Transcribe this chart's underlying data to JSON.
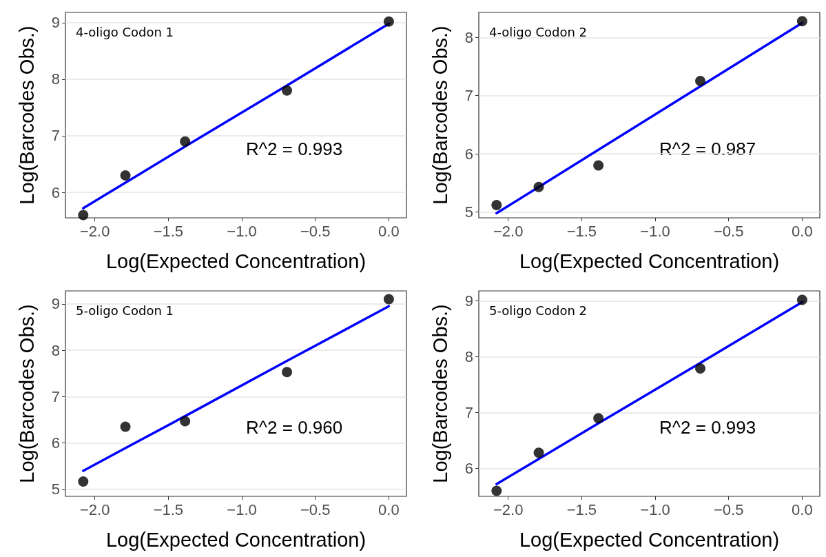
{
  "chart_data": [
    {
      "type": "scatter",
      "title": "4-oligo Codon 1",
      "xlabel": "Log(Expected Concentration)",
      "ylabel": "Log(Barcodes Obs.)",
      "annotations": [
        "R^2 = 0.993"
      ],
      "x": [
        -2.079,
        -1.792,
        -1.386,
        -0.693,
        0
      ],
      "series": [
        {
          "color": "#000000",
          "marker": "circle",
          "values": [
            5.6,
            6.3,
            6.9,
            7.8,
            9.02
          ]
        },
        {
          "type": "line",
          "color": "#0000ff",
          "marker": "none",
          "values": [
            5.72,
            6.17,
            6.81,
            7.89,
            8.98
          ]
        }
      ],
      "xlim": [
        -2.2,
        0.12
      ],
      "ylim": [
        5.55,
        9.18
      ],
      "xticks": [
        {
          "value": -2,
          "label": "−2.0"
        },
        {
          "value": -1.5,
          "label": "−1.5"
        },
        {
          "value": -1,
          "label": "−1.0"
        },
        {
          "value": -0.5,
          "label": "−0.5"
        },
        {
          "value": 0,
          "label": "0.0"
        }
      ],
      "yticks": [
        6,
        7,
        8,
        9
      ],
      "grid": "y",
      "line_style": "solid"
    },
    {
      "type": "scatter",
      "title": "4-oligo Codon 2",
      "xlabel": "Log(Expected Concentration)",
      "ylabel": "Log(Barcodes Obs.)",
      "annotations": [
        "R^2 = 0.987"
      ],
      "x": [
        -2.079,
        -1.792,
        -1.386,
        -0.693,
        0
      ],
      "series": [
        {
          "color": "#000000",
          "marker": "circle",
          "values": [
            5.12,
            5.43,
            5.8,
            7.25,
            8.28
          ]
        },
        {
          "type": "line",
          "color": "#0000ff",
          "marker": "none",
          "values": [
            4.98,
            5.43,
            6.07,
            7.16,
            8.25
          ]
        }
      ],
      "xlim": [
        -2.2,
        0.12
      ],
      "ylim": [
        4.9,
        8.43
      ],
      "xticks": [
        {
          "value": -2,
          "label": "−2.0"
        },
        {
          "value": -1.5,
          "label": "−1.5"
        },
        {
          "value": -1,
          "label": "−1.0"
        },
        {
          "value": -0.5,
          "label": "−0.5"
        },
        {
          "value": 0,
          "label": "0.0"
        }
      ],
      "yticks": [
        5,
        6,
        7,
        8
      ],
      "grid": "y",
      "line_style": "solid"
    },
    {
      "type": "scatter",
      "title": "5-oligo Codon 1",
      "xlabel": "Log(Expected Concentration)",
      "ylabel": "Log(Barcodes Obs.)",
      "annotations": [
        "R^2 = 0.960"
      ],
      "x": [
        -2.079,
        -1.792,
        -1.386,
        -0.693,
        0
      ],
      "series": [
        {
          "color": "#000000",
          "marker": "circle",
          "values": [
            5.17,
            6.35,
            6.47,
            7.53,
            9.1
          ]
        },
        {
          "type": "line",
          "color": "#0000ff",
          "marker": "none",
          "values": [
            5.4,
            5.89,
            6.58,
            7.77,
            8.95
          ]
        }
      ],
      "xlim": [
        -2.2,
        0.12
      ],
      "ylim": [
        4.85,
        9.28
      ],
      "xticks": [
        {
          "value": -2,
          "label": "−2.0"
        },
        {
          "value": -1.5,
          "label": "−1.5"
        },
        {
          "value": -1,
          "label": "−1.0"
        },
        {
          "value": -0.5,
          "label": "−0.5"
        },
        {
          "value": 0,
          "label": "0.0"
        }
      ],
      "yticks": [
        5,
        6,
        7,
        8,
        9
      ],
      "grid": "y",
      "line_style": "solid"
    },
    {
      "type": "scatter",
      "title": "5-oligo Codon 2",
      "xlabel": "Log(Expected Concentration)",
      "ylabel": "Log(Barcodes Obs.)",
      "annotations": [
        "R^2 = 0.993"
      ],
      "x": [
        -2.079,
        -1.792,
        -1.386,
        -0.693,
        0
      ],
      "series": [
        {
          "color": "#000000",
          "marker": "circle",
          "values": [
            5.6,
            6.28,
            6.9,
            7.79,
            9.02
          ]
        },
        {
          "type": "line",
          "color": "#0000ff",
          "marker": "none",
          "values": [
            5.72,
            6.17,
            6.81,
            7.89,
            8.98
          ]
        }
      ],
      "xlim": [
        -2.2,
        0.12
      ],
      "ylim": [
        5.5,
        9.18
      ],
      "xticks": [
        {
          "value": -2,
          "label": "−2.0"
        },
        {
          "value": -1.5,
          "label": "−1.5"
        },
        {
          "value": -1,
          "label": "−1.0"
        },
        {
          "value": -0.5,
          "label": "−0.5"
        },
        {
          "value": 0,
          "label": "0.0"
        }
      ],
      "yticks": [
        6,
        7,
        8,
        9
      ],
      "grid": "y",
      "line_style": "solid"
    }
  ]
}
